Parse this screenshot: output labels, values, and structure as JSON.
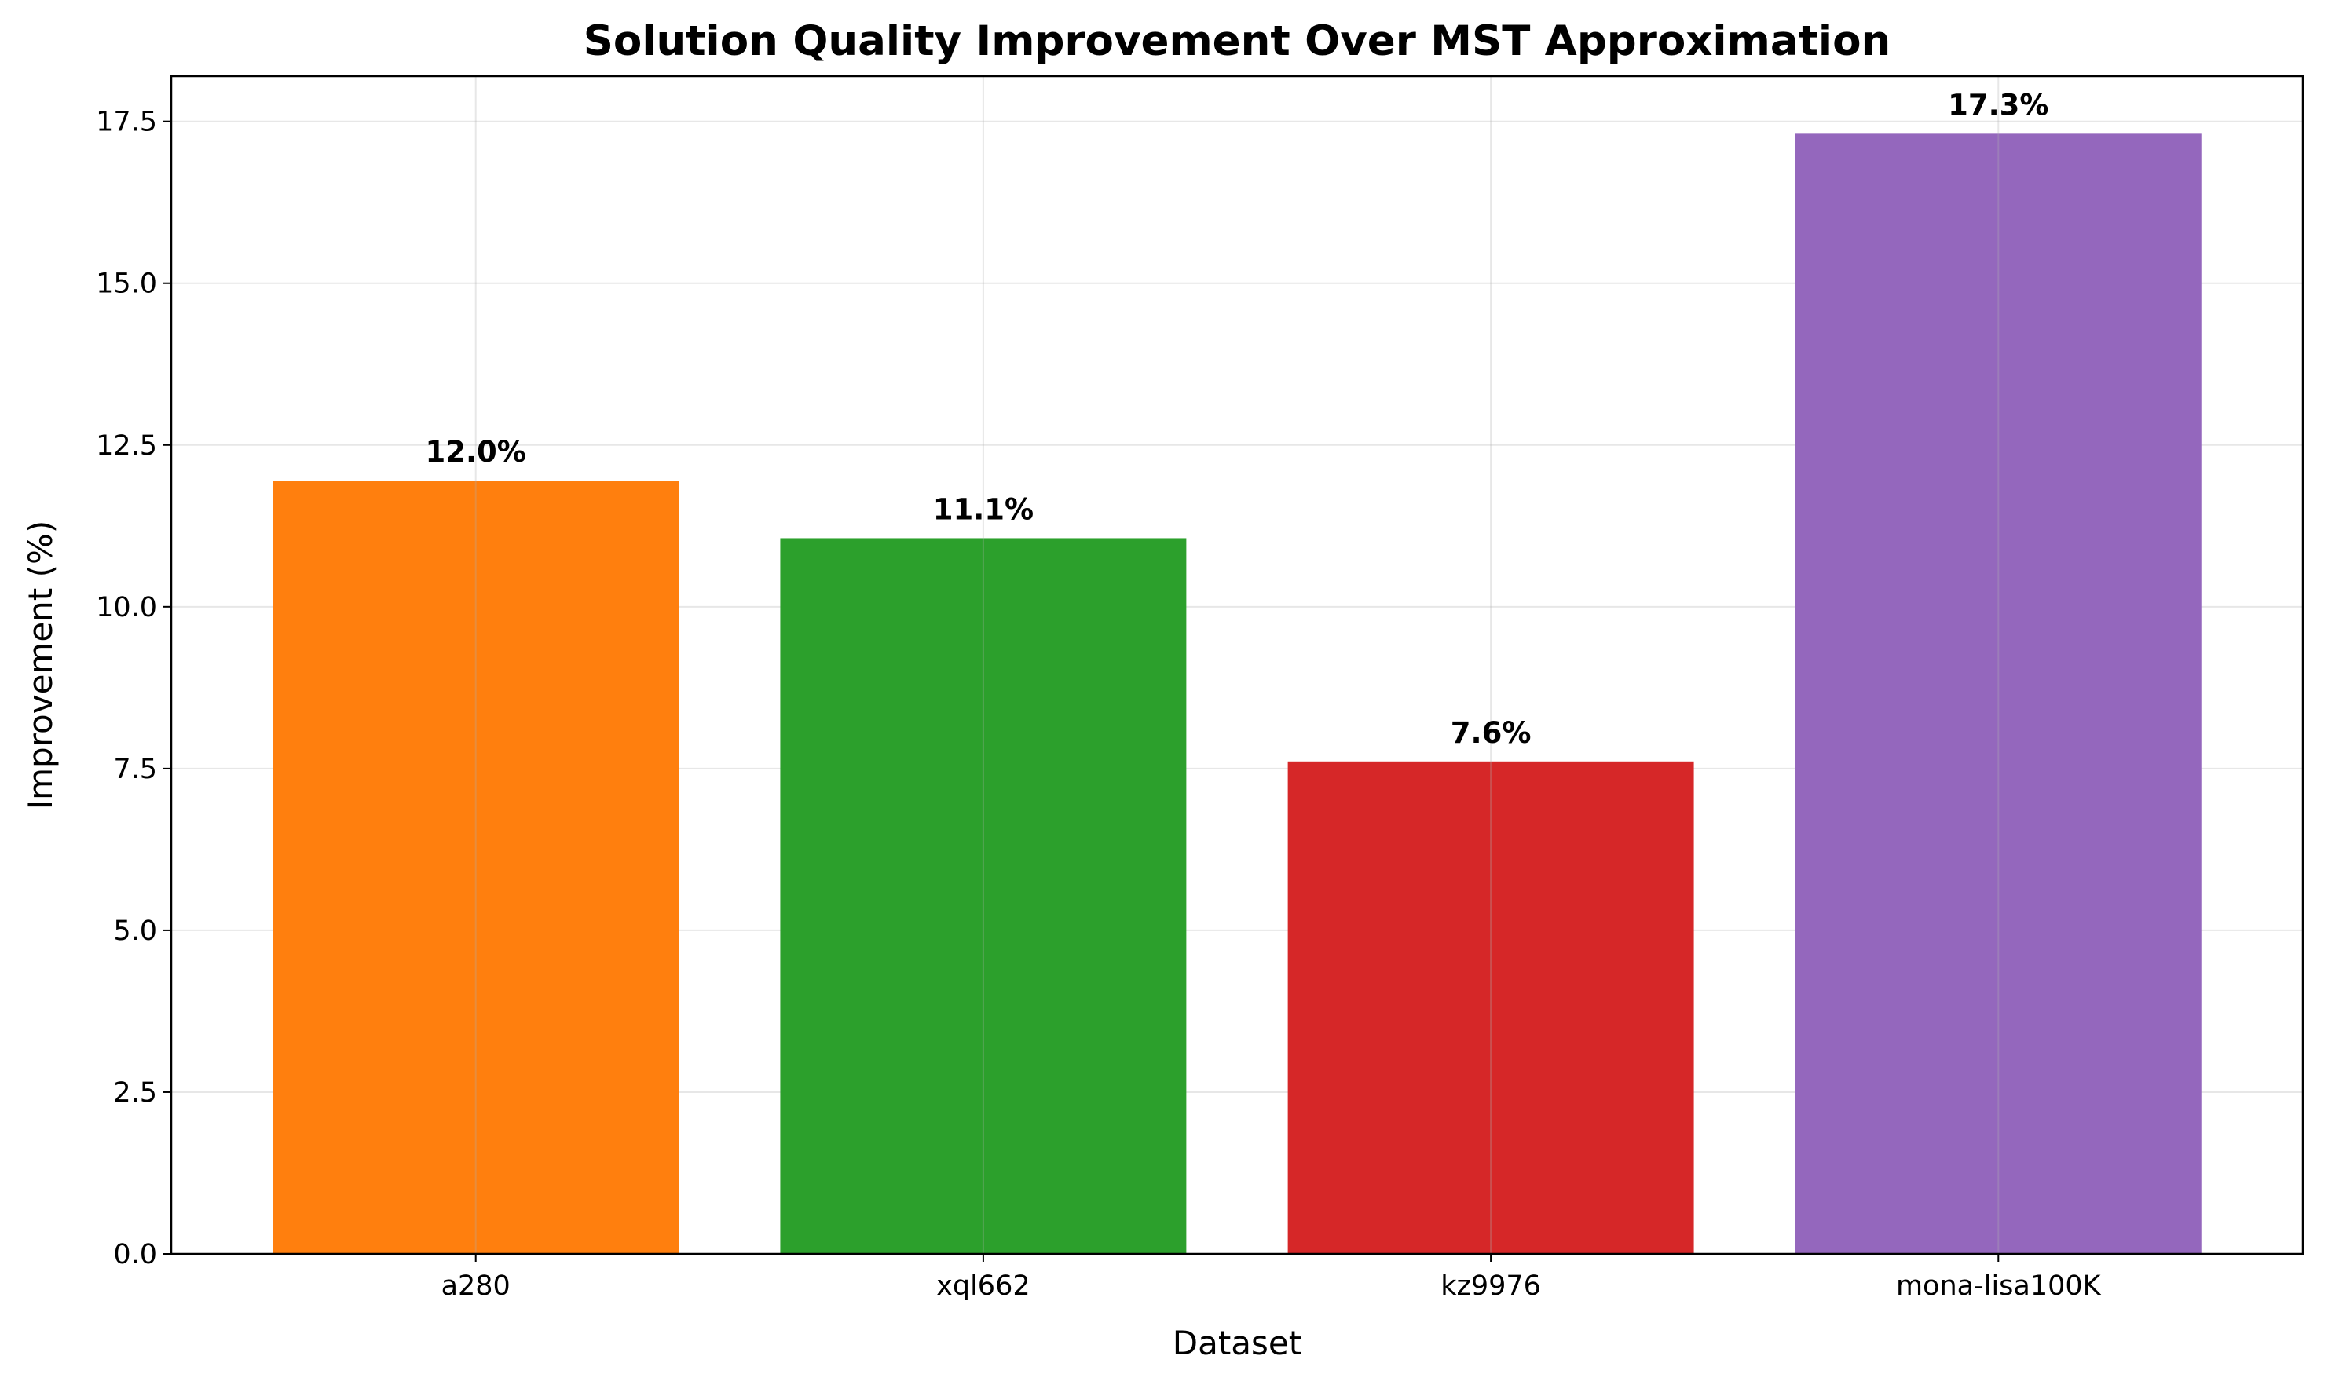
{
  "chart_data": {
    "type": "bar",
    "title": "Solution Quality Improvement Over MST Approximation",
    "xlabel": "Dataset",
    "ylabel": "Improvement (%)",
    "categories": [
      "a280",
      "xql662",
      "kz9976",
      "mona-lisa100K"
    ],
    "values": [
      11.95,
      11.06,
      7.61,
      17.31
    ],
    "data_labels": [
      "12.0%",
      "11.1%",
      "7.6%",
      "17.3%"
    ],
    "colors": [
      "#ff7f0e",
      "#2ca02c",
      "#d62728",
      "#9467bd"
    ],
    "ylim": [
      0,
      18.2
    ],
    "yticks": [
      0.0,
      2.5,
      5.0,
      7.5,
      10.0,
      12.5,
      15.0,
      17.5
    ],
    "ytick_labels": [
      "0.0",
      "2.5",
      "5.0",
      "7.5",
      "10.0",
      "12.5",
      "15.0",
      "17.5"
    ],
    "grid": true
  }
}
